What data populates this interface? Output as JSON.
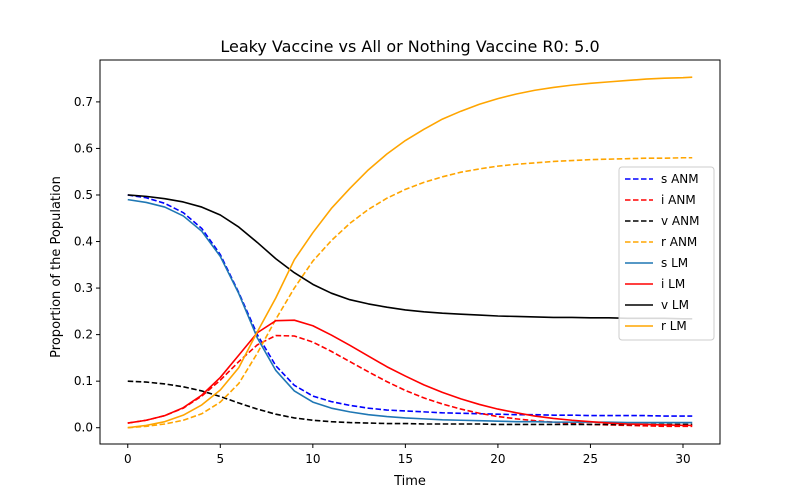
{
  "chart_data": {
    "type": "line",
    "title": "Leaky Vaccine vs All or Nothing Vaccine R0: 5.0",
    "xlabel": "Time",
    "ylabel": "Proportion of the Population",
    "xlim": [
      -1.5,
      32
    ],
    "ylim": [
      -0.035,
      0.79
    ],
    "xticks": [
      0,
      5,
      10,
      15,
      20,
      25,
      30
    ],
    "xtick_labels": [
      "0",
      "5",
      "10",
      "15",
      "20",
      "25",
      "30"
    ],
    "yticks": [
      0.0,
      0.1,
      0.2,
      0.3,
      0.4,
      0.5,
      0.6,
      0.7
    ],
    "ytick_labels": [
      "0.0",
      "0.1",
      "0.2",
      "0.3",
      "0.4",
      "0.5",
      "0.6",
      "0.7"
    ],
    "grid": false,
    "legend_position": "center-right",
    "x": [
      0,
      1,
      2,
      3,
      4,
      5,
      6,
      7,
      8,
      9,
      10,
      11,
      12,
      13,
      14,
      15,
      16,
      17,
      18,
      19,
      20,
      21,
      22,
      23,
      24,
      25,
      26,
      27,
      28,
      29,
      30,
      30.5
    ],
    "series": [
      {
        "name": "s ANM",
        "color": "#0000ff",
        "dash": "dashed",
        "values": [
          0.5,
          0.494,
          0.482,
          0.462,
          0.428,
          0.372,
          0.29,
          0.2,
          0.133,
          0.091,
          0.068,
          0.056,
          0.048,
          0.042,
          0.038,
          0.036,
          0.034,
          0.032,
          0.031,
          0.03,
          0.029,
          0.028,
          0.028,
          0.027,
          0.027,
          0.026,
          0.026,
          0.026,
          0.026,
          0.025,
          0.025,
          0.025
        ]
      },
      {
        "name": "i ANM",
        "color": "#ff0000",
        "dash": "dashed",
        "values": [
          0.01,
          0.016,
          0.026,
          0.042,
          0.068,
          0.102,
          0.142,
          0.178,
          0.198,
          0.197,
          0.184,
          0.164,
          0.142,
          0.12,
          0.099,
          0.08,
          0.064,
          0.051,
          0.04,
          0.031,
          0.024,
          0.019,
          0.015,
          0.012,
          0.009,
          0.007,
          0.006,
          0.005,
          0.004,
          0.003,
          0.003,
          0.003
        ]
      },
      {
        "name": "v ANM",
        "color": "#000000",
        "dash": "dashed",
        "values": [
          0.1,
          0.098,
          0.094,
          0.088,
          0.079,
          0.067,
          0.053,
          0.04,
          0.029,
          0.021,
          0.016,
          0.013,
          0.011,
          0.01,
          0.009,
          0.009,
          0.008,
          0.008,
          0.008,
          0.008,
          0.007,
          0.007,
          0.007,
          0.007,
          0.007,
          0.007,
          0.007,
          0.007,
          0.007,
          0.007,
          0.007,
          0.007
        ]
      },
      {
        "name": "r ANM",
        "color": "#ffa500",
        "dash": "dashed",
        "values": [
          0.0,
          0.003,
          0.008,
          0.016,
          0.03,
          0.055,
          0.095,
          0.16,
          0.233,
          0.3,
          0.358,
          0.402,
          0.439,
          0.469,
          0.493,
          0.512,
          0.527,
          0.539,
          0.549,
          0.556,
          0.562,
          0.566,
          0.569,
          0.572,
          0.574,
          0.576,
          0.577,
          0.578,
          0.579,
          0.579,
          0.58,
          0.58
        ]
      },
      {
        "name": "s LM",
        "color": "#1f77b4",
        "dash": "solid",
        "values": [
          0.49,
          0.484,
          0.474,
          0.455,
          0.422,
          0.368,
          0.288,
          0.193,
          0.123,
          0.079,
          0.055,
          0.042,
          0.034,
          0.028,
          0.024,
          0.021,
          0.019,
          0.017,
          0.016,
          0.015,
          0.014,
          0.013,
          0.013,
          0.012,
          0.012,
          0.012,
          0.012,
          0.011,
          0.011,
          0.011,
          0.011,
          0.011
        ]
      },
      {
        "name": "i LM",
        "color": "#ff0000",
        "dash": "solid",
        "values": [
          0.01,
          0.016,
          0.026,
          0.043,
          0.07,
          0.108,
          0.156,
          0.204,
          0.23,
          0.231,
          0.219,
          0.199,
          0.177,
          0.154,
          0.131,
          0.111,
          0.092,
          0.076,
          0.062,
          0.05,
          0.04,
          0.032,
          0.025,
          0.02,
          0.016,
          0.013,
          0.01,
          0.008,
          0.007,
          0.006,
          0.005,
          0.005
        ]
      },
      {
        "name": "v LM",
        "color": "#000000",
        "dash": "solid",
        "values": [
          0.5,
          0.497,
          0.492,
          0.485,
          0.474,
          0.457,
          0.431,
          0.398,
          0.363,
          0.333,
          0.308,
          0.289,
          0.275,
          0.266,
          0.259,
          0.253,
          0.249,
          0.246,
          0.244,
          0.242,
          0.24,
          0.239,
          0.238,
          0.237,
          0.237,
          0.236,
          0.236,
          0.235,
          0.235,
          0.235,
          0.234,
          0.234
        ]
      },
      {
        "name": "r LM",
        "color": "#ffa500",
        "dash": "solid",
        "values": [
          0.0,
          0.005,
          0.013,
          0.027,
          0.049,
          0.081,
          0.129,
          0.206,
          0.279,
          0.361,
          0.419,
          0.471,
          0.514,
          0.554,
          0.588,
          0.617,
          0.641,
          0.663,
          0.68,
          0.695,
          0.707,
          0.717,
          0.725,
          0.731,
          0.736,
          0.74,
          0.743,
          0.746,
          0.749,
          0.751,
          0.752,
          0.753
        ]
      }
    ]
  }
}
